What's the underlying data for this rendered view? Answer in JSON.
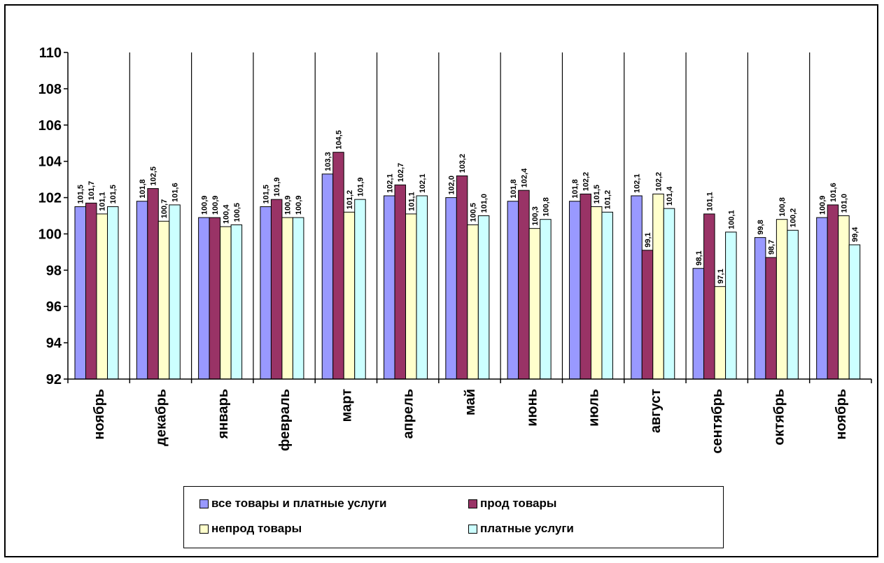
{
  "chart_data": {
    "type": "bar",
    "title": "",
    "xlabel": "",
    "ylabel": "",
    "ylim": [
      92,
      110
    ],
    "y_ticks": [
      92,
      94,
      96,
      98,
      100,
      102,
      104,
      106,
      108,
      110
    ],
    "grid": "vertical separators between categories",
    "legend_position": "bottom",
    "categories": [
      "ноябрь",
      "декабрь",
      "январь",
      "февраль",
      "март",
      "апрель",
      "май",
      "июнь",
      "июль",
      "август",
      "сентябрь",
      "октябрь",
      "ноябрь"
    ],
    "series": [
      {
        "name": "все товары и платные услуги",
        "color": "#9999FF",
        "values": [
          101.5,
          101.8,
          100.9,
          101.5,
          103.3,
          102.1,
          102.0,
          101.8,
          101.8,
          102.1,
          98.1,
          99.8,
          100.9
        ],
        "labels": [
          "101,5",
          "101,8",
          "100,9",
          "101,5",
          "103,3",
          "102,1",
          "102,0",
          "101,8",
          "101,8",
          "102,1",
          "98,1",
          "99,8",
          "100,9"
        ]
      },
      {
        "name": "прод товары",
        "color": "#993366",
        "values": [
          101.7,
          102.5,
          100.9,
          101.9,
          104.5,
          102.7,
          103.2,
          102.4,
          102.2,
          99.1,
          101.1,
          98.7,
          101.6
        ],
        "labels": [
          "101,7",
          "102,5",
          "100,9",
          "101,9",
          "104,5",
          "102,7",
          "103,2",
          "102,4",
          "102,2",
          "99,1",
          "101,1",
          "98,7",
          "101,6"
        ]
      },
      {
        "name": "непрод товары",
        "color": "#FFFFCC",
        "values": [
          101.1,
          100.7,
          100.4,
          100.9,
          101.2,
          101.1,
          100.5,
          100.3,
          101.5,
          102.2,
          97.1,
          100.8,
          101.0
        ],
        "labels": [
          "101,1",
          "100,7",
          "100,4",
          "100,9",
          "101,2",
          "101,1",
          "100,5",
          "100,3",
          "101,5",
          "102,2",
          "97,1",
          "100,8",
          "101,0"
        ]
      },
      {
        "name": "платные услуги",
        "color": "#CCFFFF",
        "values": [
          101.5,
          101.6,
          100.5,
          100.9,
          101.9,
          102.1,
          101.0,
          100.8,
          101.2,
          101.4,
          100.1,
          100.2,
          99.4
        ],
        "labels": [
          "101,5",
          "101,6",
          "100,5",
          "100,9",
          "101,9",
          "102,1",
          "101,0",
          "100,8",
          "101,2",
          "101,4",
          "100,1",
          "100,2",
          "99,4"
        ]
      }
    ]
  },
  "legend": {
    "items": [
      {
        "label": "все товары и платные услуги",
        "color": "#9999FF"
      },
      {
        "label": "прод товары",
        "color": "#993366"
      },
      {
        "label": "непрод товары",
        "color": "#FFFFCC"
      },
      {
        "label": "платные услуги",
        "color": "#CCFFFF"
      }
    ]
  }
}
